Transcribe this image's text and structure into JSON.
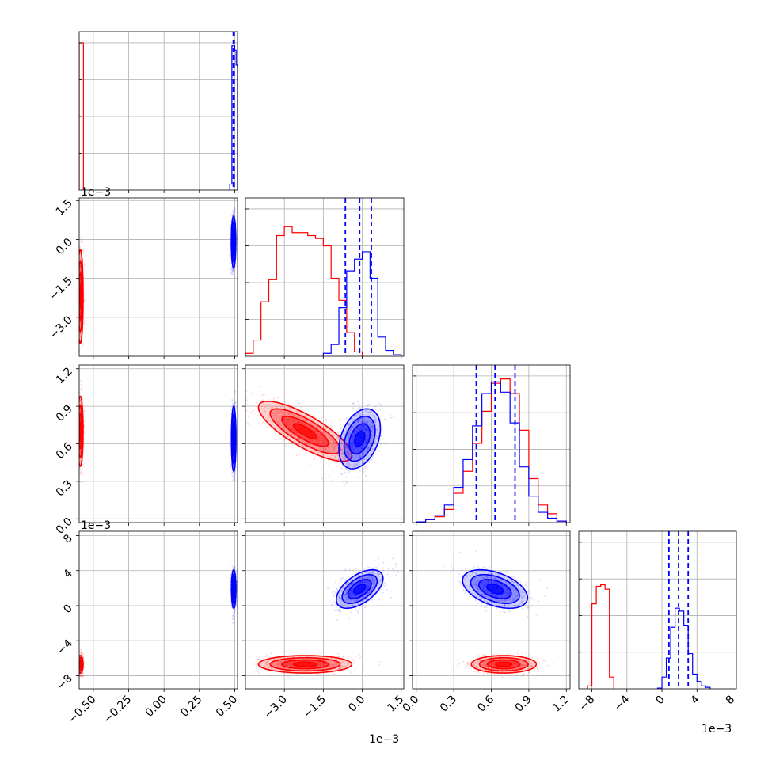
{
  "chart_data": {
    "type": "corner",
    "title": "",
    "grid": true,
    "series_colors": {
      "red": "#ff0000",
      "blue": "#0000ff"
    },
    "axes": [
      {
        "range": [
          -0.6,
          0.52
        ],
        "ticks": [
          -0.5,
          -0.25,
          0.0,
          0.25,
          0.5
        ],
        "tick_labels": [
          "−0.50",
          "−0.25",
          "0.00",
          "0.25",
          "0.50"
        ],
        "offset_label": ""
      },
      {
        "range": [
          -0.0045,
          0.0016
        ],
        "ticks": [
          -0.003,
          -0.0015,
          0.0,
          0.0015
        ],
        "tick_labels": [
          "−3.0",
          "−1.5",
          "0.0",
          "1.5"
        ],
        "offset_label": "1e−3"
      },
      {
        "range": [
          -0.03,
          1.23
        ],
        "ticks": [
          0.0,
          0.3,
          0.6,
          0.9,
          1.2
        ],
        "tick_labels": [
          "0.0",
          "0.3",
          "0.6",
          "0.9",
          "1.2"
        ],
        "offset_label": ""
      },
      {
        "range": [
          -0.0095,
          0.0085
        ],
        "ticks": [
          -0.008,
          -0.004,
          0.0,
          0.004,
          0.008
        ],
        "tick_labels": [
          "−8",
          "−4",
          "0",
          "4",
          "8"
        ],
        "offset_label": "1e−3"
      }
    ],
    "quantiles_blue": [
      [
        0.49,
        0.493,
        0.496
      ],
      [
        -0.00065,
        -0.0001,
        0.00035
      ],
      [
        0.48,
        0.63,
        0.79
      ],
      [
        0.0008,
        0.0019,
        0.003
      ]
    ],
    "histograms": [
      {
        "red": {
          "edges": [
            -0.6,
            -0.57
          ],
          "counts": [
            1.0
          ]
        },
        "blue": {
          "edges": [
            0.465,
            0.48,
            0.49,
            0.5,
            0.51,
            0.52
          ],
          "counts": [
            0.04,
            0.98,
            0.98,
            0.95,
            0.85
          ]
        }
      },
      {
        "red": {
          "edges": [
            -0.0045,
            -0.0042,
            -0.0039,
            -0.0036,
            -0.0033,
            -0.003,
            -0.0027,
            -0.0024,
            -0.0021,
            -0.0018,
            -0.0015,
            -0.0012,
            -0.0009,
            -0.0006,
            -0.0003,
            0.0
          ],
          "counts": [
            0.02,
            0.11,
            0.37,
            0.52,
            0.82,
            0.88,
            0.84,
            0.84,
            0.82,
            0.8,
            0.75,
            0.53,
            0.38,
            0.16,
            0.03
          ]
        },
        "blue": {
          "edges": [
            -0.0015,
            -0.0012,
            -0.0009,
            -0.0006,
            -0.0003,
            0.0,
            0.0003,
            0.0006,
            0.0009,
            0.0012,
            0.0015
          ],
          "counts": [
            0.02,
            0.08,
            0.33,
            0.58,
            0.66,
            0.71,
            0.53,
            0.13,
            0.04,
            0.01
          ]
        }
      },
      {
        "red": {
          "edges": [
            0.0,
            0.075,
            0.15,
            0.225,
            0.3,
            0.375,
            0.45,
            0.525,
            0.6,
            0.675,
            0.75,
            0.825,
            0.9,
            0.975,
            1.05,
            1.125,
            1.2
          ],
          "counts": [
            0.005,
            0.02,
            0.04,
            0.09,
            0.2,
            0.35,
            0.54,
            0.76,
            0.95,
            0.98,
            0.88,
            0.63,
            0.3,
            0.12,
            0.06,
            0.01
          ]
        },
        "blue": {
          "edges": [
            0.0,
            0.075,
            0.15,
            0.225,
            0.3,
            0.375,
            0.45,
            0.525,
            0.6,
            0.675,
            0.75,
            0.825,
            0.9,
            0.975,
            1.05,
            1.125,
            1.2
          ],
          "counts": [
            0.005,
            0.02,
            0.05,
            0.12,
            0.24,
            0.43,
            0.66,
            0.88,
            0.96,
            0.89,
            0.68,
            0.38,
            0.18,
            0.07,
            0.03,
            0.01
          ]
        }
      },
      {
        "red": {
          "edges": [
            -0.0085,
            -0.008,
            -0.0075,
            -0.007,
            -0.0065,
            -0.006,
            -0.0055
          ],
          "counts": [
            0.02,
            0.58,
            0.7,
            0.71,
            0.68,
            0.08
          ]
        },
        "blue": {
          "edges": [
            -0.0005,
            0.0,
            0.0005,
            0.001,
            0.0015,
            0.002,
            0.0025,
            0.003,
            0.0035,
            0.004,
            0.0045,
            0.005,
            0.0055
          ],
          "counts": [
            0.005,
            0.08,
            0.21,
            0.42,
            0.55,
            0.53,
            0.43,
            0.24,
            0.1,
            0.05,
            0.02,
            0.01
          ]
        }
      }
    ],
    "pairs": [
      {
        "row": 1,
        "col": 0,
        "blue": {
          "cx": 0.492,
          "cy": -0.0001,
          "sx": 0.008,
          "sy": 0.0005,
          "rho": 0.0
        },
        "red": {
          "cx": -0.592,
          "cy": -0.0022,
          "sx": 0.01,
          "sy": 0.0009,
          "rho": 0.0
        }
      },
      {
        "row": 2,
        "col": 0,
        "blue": {
          "cx": 0.493,
          "cy": 0.64,
          "sx": 0.008,
          "sy": 0.13,
          "rho": 0.0
        },
        "red": {
          "cx": -0.592,
          "cy": 0.7,
          "sx": 0.01,
          "sy": 0.14,
          "rho": 0.0
        }
      },
      {
        "row": 2,
        "col": 1,
        "blue": {
          "cx": -0.0001,
          "cy": 0.64,
          "sx": 0.0004,
          "sy": 0.12,
          "rho": 0.35
        },
        "red": {
          "cx": -0.0022,
          "cy": 0.7,
          "sx": 0.0009,
          "sy": 0.12,
          "rho": -0.8
        }
      },
      {
        "row": 3,
        "col": 0,
        "blue": {
          "cx": 0.493,
          "cy": 0.0019,
          "sx": 0.008,
          "sy": 0.0011,
          "rho": 0.0
        },
        "red": {
          "cx": -0.592,
          "cy": -0.0067,
          "sx": 0.01,
          "sy": 0.0005,
          "rho": 0.0
        }
      },
      {
        "row": 3,
        "col": 1,
        "blue": {
          "cx": -0.0001,
          "cy": 0.0019,
          "sx": 0.00045,
          "sy": 0.0011,
          "rho": 0.55
        },
        "red": {
          "cx": -0.0022,
          "cy": -0.0067,
          "sx": 0.0009,
          "sy": 0.0005,
          "rho": 0.0
        }
      },
      {
        "row": 3,
        "col": 2,
        "blue": {
          "cx": 0.63,
          "cy": 0.0019,
          "sx": 0.13,
          "sy": 0.0011,
          "rho": -0.45
        },
        "red": {
          "cx": 0.7,
          "cy": -0.0067,
          "sx": 0.13,
          "sy": 0.0005,
          "rho": 0.0
        }
      }
    ]
  }
}
